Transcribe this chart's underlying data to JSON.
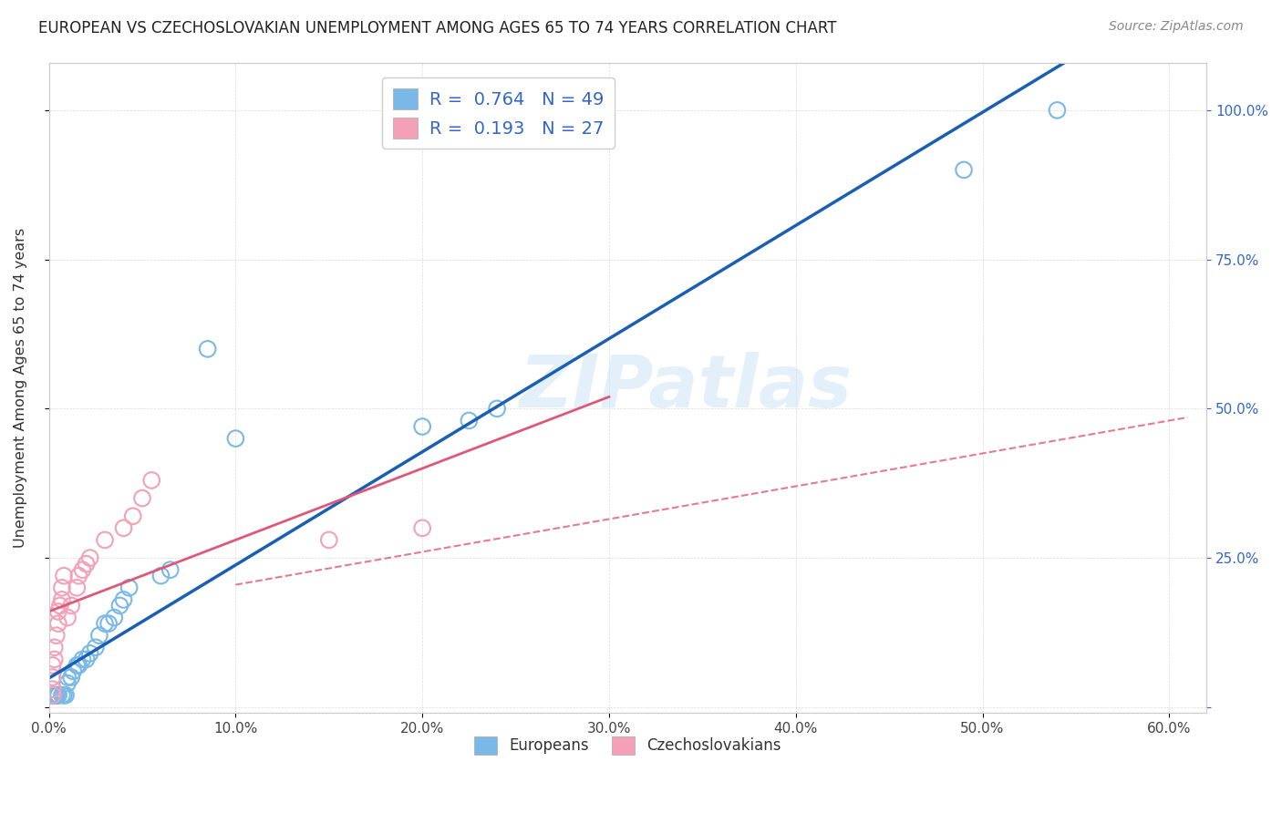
{
  "title": "EUROPEAN VS CZECHOSLOVAKIAN UNEMPLOYMENT AMONG AGES 65 TO 74 YEARS CORRELATION CHART",
  "source": "Source: ZipAtlas.com",
  "ylabel": "Unemployment Among Ages 65 to 74 years",
  "xlim": [
    0.0,
    0.62
  ],
  "ylim": [
    -0.01,
    1.08
  ],
  "xticks": [
    0.0,
    0.1,
    0.2,
    0.3,
    0.4,
    0.5,
    0.6
  ],
  "xticklabels": [
    "0.0%",
    "10.0%",
    "20.0%",
    "30.0%",
    "40.0%",
    "50.0%",
    "60.0%"
  ],
  "yticks": [
    0.0,
    0.25,
    0.5,
    0.75,
    1.0
  ],
  "yticklabels_right": [
    "",
    "25.0%",
    "50.0%",
    "75.0%",
    "100.0%"
  ],
  "european_R": "0.764",
  "european_N": "49",
  "czech_R": "0.193",
  "czech_N": "27",
  "european_color": "#7ab8e8",
  "czech_color": "#f4a0b8",
  "european_line_color": "#1a5fb4",
  "czech_solid_color": "#e05878",
  "czech_dash_color": "#e05878",
  "background_color": "#ffffff",
  "watermark": "ZIPatlas",
  "legend_europeans": "Europeans",
  "legend_czechoslovakians": "Czechoslovakians",
  "european_x": [
    0.002,
    0.002,
    0.002,
    0.002,
    0.002,
    0.002,
    0.002,
    0.002,
    0.002,
    0.002,
    0.003,
    0.003,
    0.003,
    0.003,
    0.003,
    0.004,
    0.004,
    0.005,
    0.005,
    0.005,
    0.007,
    0.008,
    0.009,
    0.01,
    0.01,
    0.012,
    0.013,
    0.015,
    0.016,
    0.018,
    0.02,
    0.022,
    0.025,
    0.027,
    0.03,
    0.032,
    0.035,
    0.038,
    0.04,
    0.043,
    0.06,
    0.065,
    0.085,
    0.1,
    0.2,
    0.225,
    0.24,
    0.49,
    0.54
  ],
  "european_y": [
    0.02,
    0.02,
    0.02,
    0.02,
    0.02,
    0.02,
    0.02,
    0.02,
    0.02,
    0.02,
    0.02,
    0.02,
    0.02,
    0.02,
    0.02,
    0.02,
    0.02,
    0.02,
    0.02,
    0.02,
    0.02,
    0.02,
    0.02,
    0.04,
    0.05,
    0.05,
    0.06,
    0.07,
    0.07,
    0.08,
    0.08,
    0.09,
    0.1,
    0.12,
    0.14,
    0.14,
    0.15,
    0.17,
    0.18,
    0.2,
    0.22,
    0.23,
    0.6,
    0.45,
    0.47,
    0.48,
    0.5,
    0.9,
    1.0
  ],
  "czech_x": [
    0.002,
    0.002,
    0.002,
    0.002,
    0.003,
    0.003,
    0.004,
    0.005,
    0.005,
    0.006,
    0.007,
    0.007,
    0.008,
    0.01,
    0.012,
    0.015,
    0.016,
    0.018,
    0.02,
    0.022,
    0.03,
    0.04,
    0.045,
    0.05,
    0.055,
    0.15,
    0.2
  ],
  "czech_y": [
    0.02,
    0.03,
    0.05,
    0.07,
    0.08,
    0.1,
    0.12,
    0.14,
    0.16,
    0.17,
    0.18,
    0.2,
    0.22,
    0.15,
    0.17,
    0.2,
    0.22,
    0.23,
    0.24,
    0.25,
    0.28,
    0.3,
    0.32,
    0.35,
    0.38,
    0.28,
    0.3
  ]
}
